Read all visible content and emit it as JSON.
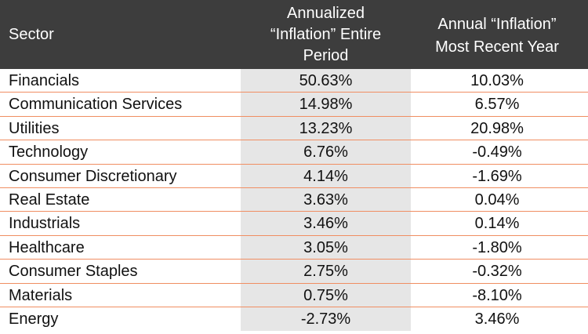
{
  "header": {
    "sector": "Sector",
    "entire_period": [
      "Annualized",
      "“Inflation” Entire",
      "Period"
    ],
    "recent_year": [
      "Annual “Inflation”",
      "Most Recent Year"
    ]
  },
  "rows": [
    {
      "sector": "Financials",
      "entire": "50.63%",
      "recent": "10.03%"
    },
    {
      "sector": "Communication Services",
      "entire": "14.98%",
      "recent": "6.57%"
    },
    {
      "sector": "Utilities",
      "entire": "13.23%",
      "recent": "20.98%"
    },
    {
      "sector": "Technology",
      "entire": "6.76%",
      "recent": "-0.49%"
    },
    {
      "sector": "Consumer Discretionary",
      "entire": "4.14%",
      "recent": "-1.69%"
    },
    {
      "sector": "Real Estate",
      "entire": "3.63%",
      "recent": "0.04%"
    },
    {
      "sector": "Industrials",
      "entire": "3.46%",
      "recent": "0.14%"
    },
    {
      "sector": "Healthcare",
      "entire": "3.05%",
      "recent": "-1.80%"
    },
    {
      "sector": "Consumer Staples",
      "entire": "2.75%",
      "recent": "-0.32%"
    },
    {
      "sector": "Materials",
      "entire": "0.75%",
      "recent": "-8.10%"
    },
    {
      "sector": "Energy",
      "entire": "-2.73%",
      "recent": "3.46%"
    }
  ],
  "colors": {
    "header_bg": "#3d3d3d",
    "row_line": "#f08e62",
    "shade": "#e6e6e6"
  }
}
